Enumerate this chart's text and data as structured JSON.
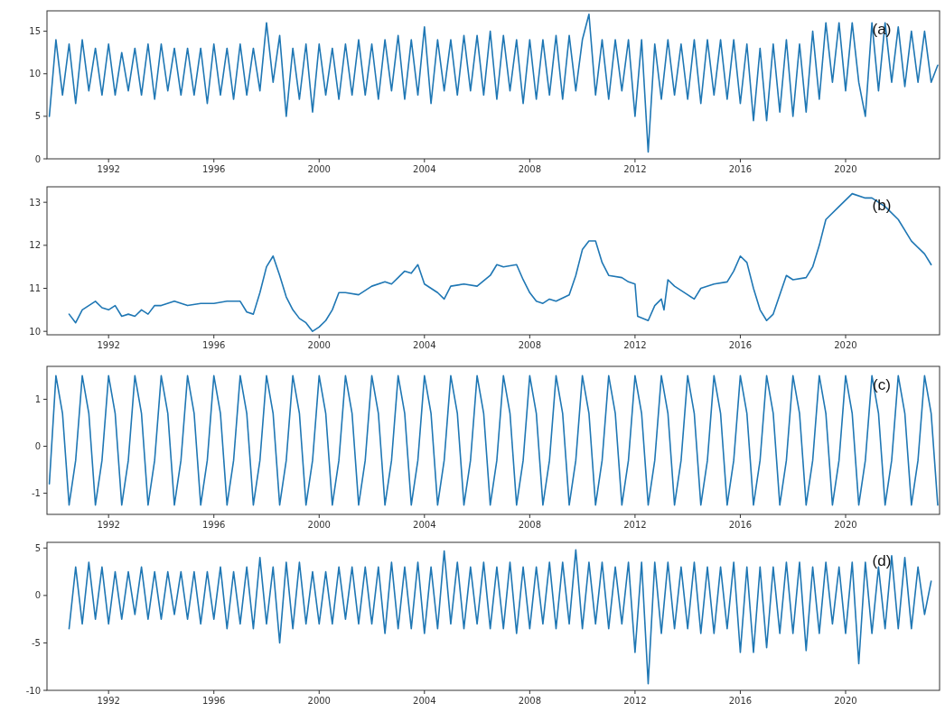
{
  "chart_data": [
    {
      "type": "line",
      "color": "#1f77b4",
      "annotations": [
        "(a)"
      ],
      "xlim": [
        1989.66,
        2023.57
      ],
      "xticks": [
        1992,
        1996,
        2000,
        2004,
        2008,
        2012,
        2016,
        2020
      ],
      "ylim": [
        0,
        17.4
      ],
      "yticks": [
        0,
        5,
        10,
        15
      ],
      "x": [
        1989.75,
        1990,
        1990.25,
        1990.5,
        1990.75,
        1991,
        1991.25,
        1991.5,
        1991.75,
        1992,
        1992.25,
        1992.5,
        1992.75,
        1993,
        1993.25,
        1993.5,
        1993.75,
        1994,
        1994.25,
        1994.5,
        1994.75,
        1995,
        1995.25,
        1995.5,
        1995.75,
        1996,
        1996.25,
        1996.5,
        1996.75,
        1997,
        1997.25,
        1997.5,
        1997.75,
        1998,
        1998.25,
        1998.5,
        1998.75,
        1999,
        1999.25,
        1999.5,
        1999.75,
        2000,
        2000.25,
        2000.5,
        2000.75,
        2001,
        2001.25,
        2001.5,
        2001.75,
        2002,
        2002.25,
        2002.5,
        2002.75,
        2003,
        2003.25,
        2003.5,
        2003.75,
        2004,
        2004.25,
        2004.5,
        2004.75,
        2005,
        2005.25,
        2005.5,
        2005.75,
        2006,
        2006.25,
        2006.5,
        2006.75,
        2007,
        2007.25,
        2007.5,
        2007.75,
        2008,
        2008.25,
        2008.5,
        2008.75,
        2009,
        2009.25,
        2009.5,
        2009.75,
        2010,
        2010.25,
        2010.5,
        2010.75,
        2011,
        2011.25,
        2011.5,
        2011.75,
        2012,
        2012.25,
        2012.5,
        2012.75,
        2013,
        2013.25,
        2013.5,
        2013.75,
        2014,
        2014.25,
        2014.5,
        2014.75,
        2015,
        2015.25,
        2015.5,
        2015.75,
        2016,
        2016.25,
        2016.5,
        2016.75,
        2017,
        2017.25,
        2017.5,
        2017.75,
        2018,
        2018.25,
        2018.5,
        2018.75,
        2019,
        2019.25,
        2019.5,
        2019.75,
        2020,
        2020.25,
        2020.5,
        2020.75,
        2021,
        2021.25,
        2021.5,
        2021.75,
        2022,
        2022.25,
        2022.5,
        2022.75,
        2023,
        2023.25,
        2023.5
      ],
      "values": [
        5,
        14,
        7.5,
        13.5,
        6.5,
        14,
        8,
        13,
        7.5,
        13.5,
        7.5,
        12.5,
        8,
        13,
        7.5,
        13.5,
        7,
        13.5,
        8,
        13,
        7.5,
        13,
        7.5,
        13,
        6.5,
        13.5,
        7.5,
        13,
        7,
        13.5,
        7.5,
        13,
        8,
        16,
        9,
        14.5,
        5,
        13,
        7,
        13.5,
        5.5,
        13.5,
        7.5,
        13,
        7,
        13.5,
        7.5,
        14,
        7.5,
        13.5,
        7,
        14,
        8,
        14.5,
        7,
        14,
        7.5,
        15.5,
        6.5,
        14,
        8,
        14,
        7.5,
        14.5,
        8,
        14.5,
        7.5,
        15,
        7,
        14.5,
        8,
        14,
        6.5,
        14,
        7,
        14,
        7.5,
        14.5,
        7,
        14.5,
        8,
        14,
        17,
        7.5,
        14,
        7,
        14,
        8,
        14,
        5,
        14,
        0.8,
        13.5,
        7,
        14,
        7.5,
        13.5,
        7,
        14,
        6.5,
        14,
        7.5,
        14,
        7,
        14,
        6.5,
        13.5,
        4.5,
        13,
        4.5,
        13.5,
        5.5,
        14,
        5,
        13.5,
        5.5,
        15,
        7,
        16,
        9,
        16,
        8,
        16,
        9,
        5,
        16,
        8,
        16,
        9,
        15.5,
        8.5,
        15,
        9,
        15,
        9,
        11
      ]
    },
    {
      "type": "line",
      "color": "#1f77b4",
      "annotations": [
        "(b)"
      ],
      "xlim": [
        1989.66,
        2023.57
      ],
      "xticks": [
        1992,
        1996,
        2000,
        2004,
        2008,
        2012,
        2016,
        2020
      ],
      "ylim": [
        9.92,
        13.36
      ],
      "yticks": [
        10,
        11,
        12,
        13
      ],
      "x": [
        1990.5,
        1990.75,
        1991,
        1991.25,
        1991.5,
        1991.75,
        1992,
        1992.25,
        1992.5,
        1992.75,
        1993,
        1993.25,
        1993.5,
        1993.75,
        1994,
        1994.5,
        1995,
        1995.5,
        1996,
        1996.5,
        1997,
        1997.25,
        1997.5,
        1997.75,
        1998,
        1998.25,
        1998.5,
        1998.75,
        1999,
        1999.25,
        1999.5,
        1999.75,
        2000,
        2000.25,
        2000.5,
        2000.75,
        2001,
        2001.5,
        2002,
        2002.5,
        2002.75,
        2003,
        2003.25,
        2003.5,
        2003.75,
        2004,
        2004.5,
        2004.75,
        2005,
        2005.5,
        2006,
        2006.5,
        2006.75,
        2007,
        2007.5,
        2007.75,
        2008,
        2008.25,
        2008.5,
        2008.75,
        2009,
        2009.5,
        2009.75,
        2010,
        2010.25,
        2010.5,
        2010.75,
        2011,
        2011.5,
        2011.75,
        2012,
        2012.1,
        2012.5,
        2012.75,
        2013,
        2013.1,
        2013.25,
        2013.5,
        2014,
        2014.25,
        2014.5,
        2015,
        2015.5,
        2015.75,
        2016,
        2016.25,
        2016.5,
        2016.75,
        2017,
        2017.25,
        2017.75,
        2018,
        2018.5,
        2018.75,
        2019,
        2019.25,
        2019.75,
        2020.25,
        2020.75,
        2021,
        2021.5,
        2022,
        2022.5,
        2023,
        2023.25
      ],
      "values": [
        10.4,
        10.2,
        10.5,
        10.6,
        10.7,
        10.55,
        10.5,
        10.6,
        10.35,
        10.4,
        10.35,
        10.5,
        10.4,
        10.6,
        10.6,
        10.7,
        10.6,
        10.65,
        10.65,
        10.7,
        10.7,
        10.45,
        10.4,
        10.9,
        11.5,
        11.75,
        11.3,
        10.8,
        10.5,
        10.3,
        10.2,
        10.0,
        10.1,
        10.25,
        10.5,
        10.9,
        10.9,
        10.85,
        11.05,
        11.15,
        11.1,
        11.25,
        11.4,
        11.35,
        11.55,
        11.1,
        10.9,
        10.75,
        11.05,
        11.1,
        11.05,
        11.3,
        11.55,
        11.5,
        11.55,
        11.2,
        10.9,
        10.7,
        10.65,
        10.75,
        10.7,
        10.85,
        11.3,
        11.9,
        12.1,
        12.1,
        11.6,
        11.3,
        11.25,
        11.15,
        11.1,
        10.35,
        10.25,
        10.6,
        10.75,
        10.5,
        11.2,
        11.05,
        10.85,
        10.75,
        11.0,
        11.1,
        11.15,
        11.4,
        11.75,
        11.6,
        11.0,
        10.5,
        10.25,
        10.4,
        11.3,
        11.2,
        11.25,
        11.5,
        12.0,
        12.6,
        12.9,
        13.2,
        13.1,
        13.1,
        12.9,
        12.6,
        12.1,
        11.8,
        11.55
      ]
    },
    {
      "type": "line",
      "color": "#1f77b4",
      "annotations": [
        "(c)"
      ],
      "xlim": [
        1989.66,
        2023.57
      ],
      "xticks": [
        1992,
        1996,
        2000,
        2004,
        2008,
        2012,
        2016,
        2020
      ],
      "ylim": [
        -1.45,
        1.7
      ],
      "yticks": [
        -1,
        0,
        1
      ],
      "x": [
        1989.75,
        1990,
        1990.25,
        1990.5,
        1990.75,
        1991,
        1991.25,
        1991.5,
        1991.75,
        1992,
        1992.25,
        1992.5,
        1992.75,
        1993,
        1993.25,
        1993.5,
        1993.75,
        1994,
        1994.25,
        1994.5,
        1994.75,
        1995,
        1995.25,
        1995.5,
        1995.75,
        1996,
        1996.25,
        1996.5,
        1996.75,
        1997,
        1997.25,
        1997.5,
        1997.75,
        1998,
        1998.25,
        1998.5,
        1998.75,
        1999,
        1999.25,
        1999.5,
        1999.75,
        2000,
        2000.25,
        2000.5,
        2000.75,
        2001,
        2001.25,
        2001.5,
        2001.75,
        2002,
        2002.25,
        2002.5,
        2002.75,
        2003,
        2003.25,
        2003.5,
        2003.75,
        2004,
        2004.25,
        2004.5,
        2004.75,
        2005,
        2005.25,
        2005.5,
        2005.75,
        2006,
        2006.25,
        2006.5,
        2006.75,
        2007,
        2007.25,
        2007.5,
        2007.75,
        2008,
        2008.25,
        2008.5,
        2008.75,
        2009,
        2009.25,
        2009.5,
        2009.75,
        2010,
        2010.25,
        2010.5,
        2010.75,
        2011,
        2011.25,
        2011.5,
        2011.75,
        2012,
        2012.25,
        2012.5,
        2012.75,
        2013,
        2013.25,
        2013.5,
        2013.75,
        2014,
        2014.25,
        2014.5,
        2014.75,
        2015,
        2015.25,
        2015.5,
        2015.75,
        2016,
        2016.25,
        2016.5,
        2016.75,
        2017,
        2017.25,
        2017.5,
        2017.75,
        2018,
        2018.25,
        2018.5,
        2018.75,
        2019,
        2019.25,
        2019.5,
        2019.75,
        2020,
        2020.25,
        2020.5,
        2020.75,
        2021,
        2021.25,
        2021.5,
        2021.75,
        2022,
        2022.25,
        2022.5,
        2022.75,
        2023,
        2023.25,
        2023.5
      ],
      "values": [
        -0.8,
        1.5,
        0.7,
        -1.25,
        -0.3,
        1.5,
        0.7,
        -1.25,
        -0.3,
        1.5,
        0.7,
        -1.25,
        -0.3,
        1.5,
        0.7,
        -1.25,
        -0.3,
        1.5,
        0.7,
        -1.25,
        -0.3,
        1.5,
        0.7,
        -1.25,
        -0.3,
        1.5,
        0.7,
        -1.25,
        -0.3,
        1.5,
        0.7,
        -1.25,
        -0.3,
        1.5,
        0.7,
        -1.25,
        -0.3,
        1.5,
        0.7,
        -1.25,
        -0.3,
        1.5,
        0.7,
        -1.25,
        -0.3,
        1.5,
        0.7,
        -1.25,
        -0.3,
        1.5,
        0.7,
        -1.25,
        -0.3,
        1.5,
        0.7,
        -1.25,
        -0.3,
        1.5,
        0.7,
        -1.25,
        -0.3,
        1.5,
        0.7,
        -1.25,
        -0.3,
        1.5,
        0.7,
        -1.25,
        -0.3,
        1.5,
        0.7,
        -1.25,
        -0.3,
        1.5,
        0.7,
        -1.25,
        -0.3,
        1.5,
        0.7,
        -1.25,
        -0.3,
        1.5,
        0.7,
        -1.25,
        -0.3,
        1.5,
        0.7,
        -1.25,
        -0.3,
        1.5,
        0.7,
        -1.25,
        -0.3,
        1.5,
        0.7,
        -1.25,
        -0.3,
        1.5,
        0.7,
        -1.25,
        -0.3,
        1.5,
        0.7,
        -1.25,
        -0.3,
        1.5,
        0.7,
        -1.25,
        -0.3,
        1.5,
        0.7,
        -1.25,
        -0.3,
        1.5,
        0.7,
        -1.25,
        -0.3,
        1.5,
        0.7,
        -1.25,
        -0.3,
        1.5,
        0.7,
        -1.25,
        -0.3,
        1.5,
        0.7,
        -1.25,
        -0.3,
        1.5,
        0.7,
        -1.25,
        -0.3,
        1.5,
        0.7,
        -1.25
      ]
    },
    {
      "type": "line",
      "color": "#1f77b4",
      "annotations": [
        "(d)"
      ],
      "xlim": [
        1989.66,
        2023.57
      ],
      "xticks": [
        1992,
        1996,
        2000,
        2004,
        2008,
        2012,
        2016,
        2020
      ],
      "ylim": [
        -10,
        5.6
      ],
      "yticks": [
        -10,
        -5,
        0,
        5
      ],
      "x": [
        1990.5,
        1990.75,
        1991,
        1991.25,
        1991.5,
        1991.75,
        1992,
        1992.25,
        1992.5,
        1992.75,
        1993,
        1993.25,
        1993.5,
        1993.75,
        1994,
        1994.25,
        1994.5,
        1994.75,
        1995,
        1995.25,
        1995.5,
        1995.75,
        1996,
        1996.25,
        1996.5,
        1996.75,
        1997,
        1997.25,
        1997.5,
        1997.75,
        1998,
        1998.25,
        1998.5,
        1998.75,
        1999,
        1999.25,
        1999.5,
        1999.75,
        2000,
        2000.25,
        2000.5,
        2000.75,
        2001,
        2001.25,
        2001.5,
        2001.75,
        2002,
        2002.25,
        2002.5,
        2002.75,
        2003,
        2003.25,
        2003.5,
        2003.75,
        2004,
        2004.25,
        2004.5,
        2004.75,
        2005,
        2005.25,
        2005.5,
        2005.75,
        2006,
        2006.25,
        2006.5,
        2006.75,
        2007,
        2007.25,
        2007.5,
        2007.75,
        2008,
        2008.25,
        2008.5,
        2008.75,
        2009,
        2009.25,
        2009.5,
        2009.75,
        2010,
        2010.25,
        2010.5,
        2010.75,
        2011,
        2011.25,
        2011.5,
        2011.75,
        2012,
        2012.25,
        2012.5,
        2012.75,
        2013,
        2013.25,
        2013.5,
        2013.75,
        2014,
        2014.25,
        2014.5,
        2014.75,
        2015,
        2015.25,
        2015.5,
        2015.75,
        2016,
        2016.25,
        2016.5,
        2016.75,
        2017,
        2017.25,
        2017.5,
        2017.75,
        2018,
        2018.25,
        2018.5,
        2018.75,
        2019,
        2019.25,
        2019.5,
        2019.75,
        2020,
        2020.25,
        2020.5,
        2020.75,
        2021,
        2021.25,
        2021.5,
        2021.75,
        2022,
        2022.25,
        2022.5,
        2022.75,
        2023,
        2023.25
      ],
      "values": [
        -3.5,
        3,
        -3,
        3.5,
        -2.5,
        3,
        -3,
        2.5,
        -2.5,
        2.5,
        -2,
        3,
        -2.5,
        2.5,
        -2.5,
        2.5,
        -2,
        2.5,
        -2.5,
        2.5,
        -3,
        2.5,
        -2.5,
        3,
        -3.5,
        2.5,
        -3,
        3,
        -3.5,
        4,
        -3,
        3,
        -5,
        3.5,
        -3.5,
        3.5,
        -3,
        2.5,
        -3,
        2.5,
        -3,
        3,
        -2.5,
        3,
        -3,
        3,
        -3,
        3,
        -4,
        3.5,
        -3.5,
        3,
        -3.5,
        3.5,
        -4,
        3,
        -3.5,
        4.7,
        -3,
        3.5,
        -3.5,
        3,
        -3,
        3.5,
        -3.5,
        3,
        -3.5,
        3.5,
        -4,
        3,
        -3.5,
        3,
        -3,
        3.5,
        -3.5,
        3.5,
        -3,
        4.8,
        -3.5,
        3.5,
        -3,
        3.5,
        -3.5,
        3,
        -3,
        3.5,
        -6,
        3.5,
        -9.3,
        3.5,
        -4,
        3.5,
        -3.5,
        3,
        -3.5,
        3.5,
        -4,
        3,
        -4,
        3,
        -3.5,
        3.5,
        -6,
        3,
        -6,
        3,
        -5.5,
        3,
        -4,
        3.5,
        -4,
        3.5,
        -5.8,
        3,
        -4,
        3.5,
        -3,
        3,
        -4,
        3.5,
        -7.2,
        3.5,
        -4,
        3,
        -3.5,
        4.2,
        -3.5,
        4,
        -3.5,
        3,
        -2,
        1.5
      ]
    }
  ]
}
